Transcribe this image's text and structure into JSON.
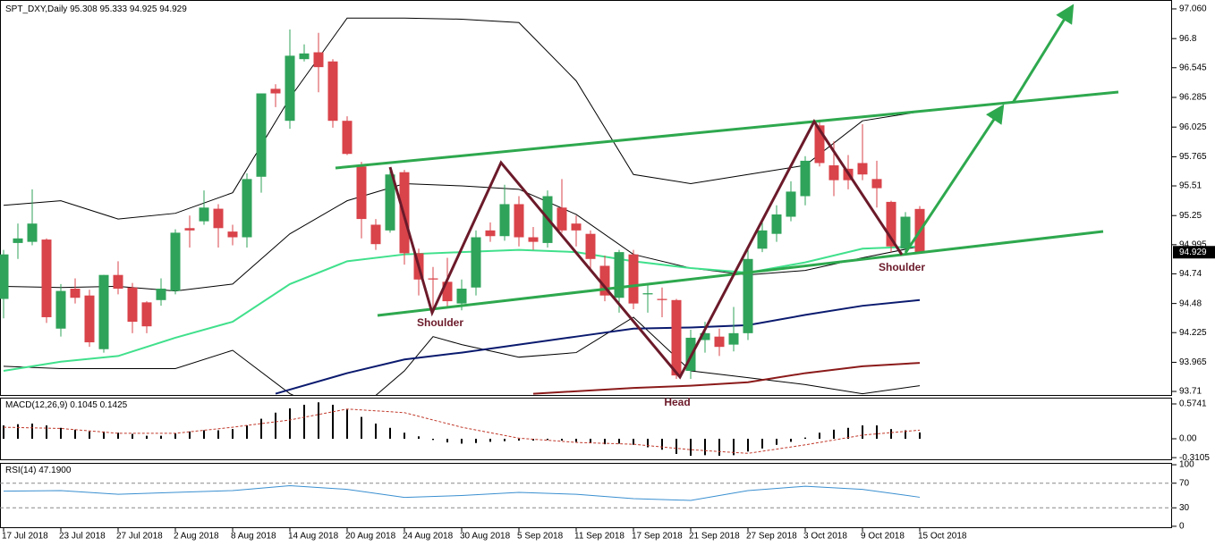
{
  "chart_data": {
    "type": "candlestick",
    "title": "SPT_DXY,Daily",
    "categories": [
      "17 Jul 2018",
      null,
      null,
      null,
      "23 Jul 2018",
      null,
      null,
      null,
      "27 Jul 2018",
      null,
      null,
      null,
      "2 Aug 2018",
      null,
      null,
      null,
      "8 Aug 2018",
      null,
      null,
      null,
      "14 Aug 2018",
      null,
      null,
      null,
      "20 Aug 2018",
      null,
      null,
      null,
      "24 Aug 2018",
      null,
      null,
      null,
      "30 Aug 2018",
      null,
      null,
      null,
      "5 Sep 2018",
      null,
      null,
      null,
      "11 Sep 2018",
      null,
      null,
      null,
      "17 Sep 2018",
      null,
      null,
      null,
      "21 Sep 2018",
      null,
      null,
      null,
      "27 Sep 2018",
      null,
      null,
      null,
      "3 Oct 2018",
      null,
      null,
      null,
      "9 Oct 2018",
      null,
      null,
      null,
      "15 Oct 2018"
    ],
    "open": [
      94.52,
      95.01,
      95.02,
      95.04,
      94.26,
      94.61,
      94.55,
      94.08,
      94.73,
      94.62,
      94.49,
      94.51,
      94.59,
      95.14,
      95.2,
      95.31,
      95.11,
      95.06,
      95.59,
      96.36,
      96.08,
      96.62,
      96.68,
      96.6,
      96.08,
      95.68,
      95.17,
      95.12,
      95.63,
      94.92,
      94.7,
      94.67,
      94.48,
      94.62,
      95.12,
      95.07,
      95.35,
      95.06,
      95.01,
      95.32,
      95.18,
      95.09,
      94.81,
      94.53,
      94.91,
      94.56,
      94.52,
      94.51,
      93.89,
      94.16,
      94.19,
      94.12,
      94.22,
      94.96,
      95.09,
      95.24,
      95.42,
      96.04,
      95.69,
      95.66,
      95.71,
      95.57,
      95.37,
      94.96,
      95.308
    ],
    "high": [
      94.95,
      95.18,
      95.48,
      95.05,
      94.65,
      94.7,
      94.6,
      94.73,
      94.85,
      94.66,
      94.5,
      94.7,
      95.13,
      95.25,
      95.47,
      95.35,
      95.17,
      95.62,
      96.32,
      96.4,
      96.88,
      96.75,
      96.85,
      96.62,
      96.12,
      95.72,
      95.22,
      95.66,
      95.65,
      94.96,
      94.8,
      94.88,
      94.69,
      95.12,
      95.19,
      95.52,
      95.42,
      95.15,
      95.47,
      95.57,
      95.25,
      95.12,
      94.9,
      94.95,
      94.95,
      94.65,
      94.62,
      94.52,
      94.25,
      94.32,
      94.26,
      94.45,
      94.96,
      95.19,
      95.34,
      95.55,
      95.77,
      96.09,
      95.9,
      95.78,
      96.05,
      95.73,
      95.38,
      95.28,
      95.333
    ],
    "low": [
      94.35,
      94.87,
      94.99,
      94.31,
      94.19,
      94.48,
      94.1,
      94.05,
      94.56,
      94.22,
      94.22,
      94.46,
      94.56,
      94.97,
      95.17,
      94.97,
      94.99,
      94.97,
      95.45,
      96.2,
      96.01,
      96.6,
      96.33,
      96.02,
      95.78,
      95.05,
      94.95,
      95.1,
      94.82,
      94.55,
      94.43,
      94.45,
      94.42,
      94.55,
      95.02,
      95.03,
      94.98,
      94.95,
      94.97,
      95.1,
      94.98,
      94.77,
      94.5,
      94.4,
      94.43,
      94.4,
      94.36,
      93.82,
      93.82,
      94.05,
      94.02,
      94.06,
      94.16,
      94.93,
      95.02,
      95.2,
      95.34,
      95.68,
      95.42,
      95.48,
      95.56,
      95.32,
      94.93,
      94.9,
      94.925
    ],
    "close": [
      94.91,
      95.05,
      95.18,
      94.36,
      94.59,
      94.53,
      94.14,
      94.73,
      94.61,
      94.32,
      94.28,
      94.61,
      95.1,
      95.12,
      95.32,
      95.14,
      95.06,
      95.57,
      96.32,
      96.32,
      96.65,
      96.67,
      96.55,
      96.08,
      95.79,
      95.22,
      95.0,
      95.61,
      94.92,
      94.69,
      94.69,
      94.5,
      94.61,
      95.06,
      95.07,
      95.35,
      95.06,
      95.02,
      95.42,
      95.12,
      95.12,
      94.87,
      94.55,
      94.93,
      94.48,
      94.57,
      94.51,
      93.85,
      94.18,
      94.22,
      94.1,
      94.22,
      94.87,
      95.12,
      95.26,
      95.46,
      95.73,
      95.71,
      95.56,
      95.56,
      95.61,
      95.49,
      94.98,
      95.24,
      94.929
    ],
    "up_color": "#2fa35a",
    "down_color": "#d9434a",
    "ylim": [
      93.671,
      97.138
    ],
    "yticks": [
      {
        "value": 97.06,
        "label": "97.060"
      },
      96.8,
      96.545,
      96.285,
      96.025,
      95.765,
      95.51,
      95.25,
      94.995,
      94.74,
      94.48,
      94.225,
      93.965,
      93.71
    ],
    "overlays": [
      {
        "color": "#000000",
        "x": [
          0,
          4,
          8,
          12,
          16,
          20,
          24,
          28,
          32,
          36,
          40,
          44,
          48,
          52,
          56,
          60,
          64
        ],
        "values": [
          95.34,
          95.38,
          95.22,
          95.27,
          95.45,
          96.28,
          96.98,
          96.98,
          96.97,
          96.94,
          96.43,
          95.61,
          95.53,
          95.61,
          95.69,
          96.08,
          96.16
        ]
      },
      {
        "color": "#000000",
        "x": [
          0,
          4,
          8,
          12,
          16,
          20,
          24,
          28,
          32,
          36,
          40,
          44,
          48,
          52,
          56,
          60,
          64
        ],
        "values": [
          94.63,
          94.62,
          94.63,
          94.59,
          94.65,
          95.09,
          95.38,
          95.53,
          95.51,
          95.48,
          95.26,
          94.91,
          94.79,
          94.73,
          94.77,
          94.88,
          94.98
        ]
      },
      {
        "color": "#000000",
        "x": [
          0,
          4,
          8,
          12,
          16,
          20,
          24,
          28,
          30,
          32,
          36,
          40,
          44,
          48,
          52,
          56,
          60,
          64
        ],
        "values": [
          93.93,
          93.91,
          93.91,
          93.91,
          94.07,
          93.69,
          93.46,
          93.89,
          94.19,
          94.12,
          94.01,
          94.05,
          94.36,
          93.89,
          93.83,
          93.77,
          93.69,
          93.76
        ]
      },
      {
        "color": "#40e08c",
        "x": [
          0,
          4,
          8,
          12,
          16,
          20,
          24,
          28,
          32,
          36,
          40,
          44,
          48,
          52,
          56,
          60,
          64
        ],
        "values": [
          93.89,
          93.97,
          94.02,
          94.18,
          94.32,
          94.65,
          94.85,
          94.91,
          94.93,
          94.95,
          94.93,
          94.85,
          94.79,
          94.75,
          94.84,
          94.96,
          94.98
        ]
      },
      {
        "color": "#0a1a6e",
        "x": [
          19,
          24,
          28,
          32,
          36,
          40,
          44,
          48,
          52,
          56,
          60,
          64
        ],
        "values": [
          93.69,
          93.87,
          93.99,
          94.05,
          94.12,
          94.19,
          94.26,
          94.27,
          94.29,
          94.38,
          94.46,
          94.51
        ]
      },
      {
        "color": "#8b1a1a",
        "x": [
          37,
          44,
          48,
          52,
          56,
          60,
          64
        ],
        "values": [
          93.69,
          93.74,
          93.76,
          93.79,
          93.87,
          93.93,
          93.96
        ]
      }
    ],
    "annotations": [
      "Shoulder",
      "Head",
      "Shoulder"
    ],
    "macd": {
      "title": "MACD(12,26,9)",
      "histogram": [
        0.22,
        0.24,
        0.25,
        0.22,
        0.18,
        0.15,
        0.12,
        0.12,
        0.1,
        0.08,
        0.05,
        0.05,
        0.09,
        0.12,
        0.14,
        0.14,
        0.16,
        0.22,
        0.33,
        0.43,
        0.5,
        0.56,
        0.6,
        0.56,
        0.48,
        0.36,
        0.25,
        0.18,
        0.1,
        0.04,
        -0.02,
        -0.06,
        -0.08,
        -0.07,
        -0.05,
        -0.04,
        -0.03,
        -0.03,
        -0.02,
        -0.03,
        -0.05,
        -0.07,
        -0.09,
        -0.08,
        -0.1,
        -0.14,
        -0.18,
        -0.25,
        -0.28,
        -0.27,
        -0.28,
        -0.27,
        -0.21,
        -0.16,
        -0.1,
        -0.05,
        0.02,
        0.1,
        0.15,
        0.18,
        0.22,
        0.22,
        0.16,
        0.14,
        0.1045
      ],
      "signal": {
        "color": "#c0392b",
        "x": [
          0,
          4,
          8,
          12,
          16,
          20,
          24,
          28,
          32,
          36,
          40,
          44,
          48,
          52,
          56,
          60,
          64
        ],
        "values": [
          0.19,
          0.17,
          0.09,
          0.09,
          0.19,
          0.31,
          0.49,
          0.43,
          0.19,
          0.01,
          -0.06,
          -0.09,
          -0.18,
          -0.24,
          -0.1,
          0.06,
          0.1425
        ]
      },
      "ylim": [
        -0.353,
        0.677
      ],
      "yticks": [
        0.5741,
        {
          "value": 0,
          "label": "0.00"
        },
        -0.3105
      ]
    },
    "rsi": {
      "title": "RSI(14)",
      "color": "#3a8fd0",
      "x": [
        0,
        4,
        8,
        12,
        16,
        20,
        24,
        28,
        32,
        36,
        40,
        44,
        48,
        52,
        56,
        60,
        64
      ],
      "values": [
        57,
        58,
        52,
        55,
        58,
        66,
        60,
        47,
        50,
        55,
        52,
        45,
        42,
        58,
        65,
        60,
        47.19
      ],
      "value_labels": [
        null,
        null,
        null,
        null,
        null,
        null,
        null,
        null,
        null,
        null,
        null,
        null,
        null,
        null,
        null,
        null,
        "47.1900"
      ],
      "ylim": [
        -3,
        103
      ],
      "yticks": [
        100,
        70,
        30,
        0
      ]
    }
  }
}
